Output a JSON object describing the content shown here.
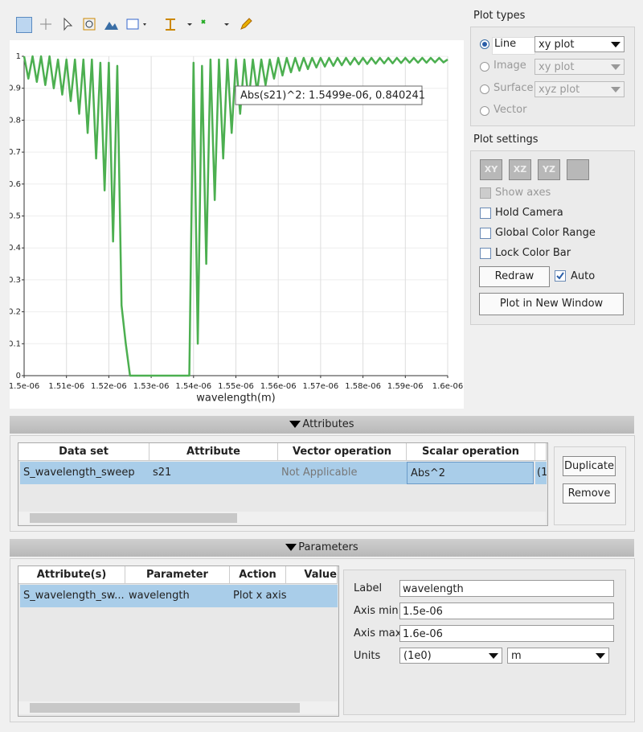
{
  "chart_data": {
    "type": "line",
    "x_label": "wavelength(m)",
    "annotation": "Abs(s21)^2: 1.5499e-06,  0.840241",
    "color": "#4caf50",
    "grid": true,
    "xlim": [
      1.5e-06,
      1.6e-06
    ],
    "ylim": [
      0,
      1
    ],
    "xticks": [
      {
        "value": 1.5e-06,
        "label": "1.5e-06"
      },
      {
        "value": 1.51e-06,
        "label": "1.51e-06"
      },
      {
        "value": 1.52e-06,
        "label": "1.52e-06"
      },
      {
        "value": 1.53e-06,
        "label": "1.53e-06"
      },
      {
        "value": 1.54e-06,
        "label": "1.54e-06"
      },
      {
        "value": 1.55e-06,
        "label": "1.55e-06"
      },
      {
        "value": 1.56e-06,
        "label": "1.56e-06"
      },
      {
        "value": 1.57e-06,
        "label": "1.57e-06"
      },
      {
        "value": 1.58e-06,
        "label": "1.58e-06"
      },
      {
        "value": 1.59e-06,
        "label": "1.59e-06"
      },
      {
        "value": 1.6e-06,
        "label": "1.6e-06"
      }
    ],
    "yticks": [
      0,
      0.1,
      0.2,
      0.3,
      0.4,
      0.5,
      0.6,
      0.7,
      0.8,
      0.9,
      1
    ],
    "x": [
      1.5e-06,
      1.501e-06,
      1.502e-06,
      1.503e-06,
      1.504e-06,
      1.505e-06,
      1.506e-06,
      1.507e-06,
      1.508e-06,
      1.509e-06,
      1.51e-06,
      1.511e-06,
      1.512e-06,
      1.513e-06,
      1.514e-06,
      1.515e-06,
      1.516e-06,
      1.517e-06,
      1.518e-06,
      1.519e-06,
      1.52e-06,
      1.521e-06,
      1.522e-06,
      1.523e-06,
      1.524e-06,
      1.525e-06,
      1.526e-06,
      1.527e-06,
      1.528e-06,
      1.529e-06,
      1.53e-06,
      1.531e-06,
      1.532e-06,
      1.533e-06,
      1.534e-06,
      1.535e-06,
      1.536e-06,
      1.537e-06,
      1.538e-06,
      1.539e-06,
      1.54e-06,
      1.541e-06,
      1.542e-06,
      1.543e-06,
      1.544e-06,
      1.545e-06,
      1.546e-06,
      1.547e-06,
      1.548e-06,
      1.549e-06,
      1.55e-06,
      1.551e-06,
      1.552e-06,
      1.553e-06,
      1.554e-06,
      1.555e-06,
      1.556e-06,
      1.557e-06,
      1.558e-06,
      1.559e-06,
      1.56e-06,
      1.561e-06,
      1.562e-06,
      1.563e-06,
      1.564e-06,
      1.565e-06,
      1.566e-06,
      1.567e-06,
      1.568e-06,
      1.569e-06,
      1.57e-06,
      1.571e-06,
      1.572e-06,
      1.573e-06,
      1.574e-06,
      1.575e-06,
      1.576e-06,
      1.577e-06,
      1.578e-06,
      1.579e-06,
      1.58e-06,
      1.581e-06,
      1.582e-06,
      1.583e-06,
      1.584e-06,
      1.585e-06,
      1.586e-06,
      1.587e-06,
      1.588e-06,
      1.589e-06,
      1.59e-06,
      1.591e-06,
      1.592e-06,
      1.593e-06,
      1.594e-06,
      1.595e-06,
      1.596e-06,
      1.597e-06,
      1.598e-06,
      1.599e-06,
      1.6e-06
    ],
    "values": [
      1.0,
      0.93,
      1.0,
      0.92,
      1.0,
      0.91,
      1.0,
      0.9,
      0.99,
      0.88,
      0.99,
      0.86,
      0.99,
      0.82,
      0.99,
      0.76,
      0.99,
      0.68,
      0.98,
      0.58,
      0.98,
      0.42,
      0.97,
      0.22,
      0.1,
      0,
      0,
      0,
      0,
      0,
      0,
      0,
      0,
      0,
      0,
      0,
      0,
      0,
      0,
      0,
      0.98,
      0.1,
      0.97,
      0.35,
      0.99,
      0.55,
      0.99,
      0.68,
      0.99,
      0.76,
      0.99,
      0.82,
      0.99,
      0.86,
      0.99,
      0.89,
      0.99,
      0.91,
      0.99,
      0.93,
      0.995,
      0.94,
      0.995,
      0.95,
      0.995,
      0.955,
      0.995,
      0.96,
      0.995,
      0.965,
      0.995,
      0.968,
      0.995,
      0.97,
      0.995,
      0.972,
      0.995,
      0.974,
      0.995,
      0.975,
      0.995,
      0.976,
      0.995,
      0.977,
      0.995,
      0.978,
      0.995,
      0.978,
      0.995,
      0.979,
      0.995,
      0.98,
      0.995,
      0.98,
      0.995,
      0.98,
      0.995,
      0.981,
      0.995,
      0.981,
      0.99
    ]
  },
  "plot_types": {
    "title": "Plot types",
    "options": [
      {
        "label": "Line",
        "select": "xy plot"
      },
      {
        "label": "Image",
        "select": "xy plot"
      },
      {
        "label": "Surface",
        "select": "xyz plot"
      },
      {
        "label": "Vector"
      }
    ]
  },
  "plot_settings": {
    "title": "Plot settings",
    "view_buttons": [
      "XY",
      "XZ",
      "YZ"
    ],
    "show_axes": "Show axes",
    "hold_camera": "Hold Camera",
    "global_color_range": "Global Color Range",
    "lock_color_bar": "Lock Color Bar",
    "redraw": "Redraw",
    "auto": "Auto",
    "new_window": "Plot in New Window"
  },
  "attributes": {
    "title": "Attributes",
    "columns": [
      "Data set",
      "Attribute",
      "Vector operation",
      "Scalar operation"
    ],
    "rows": [
      [
        "S_wavelength_sweep",
        "s21",
        "Not Applicable",
        "Abs^2",
        "(1"
      ]
    ],
    "buttons": [
      "Duplicate",
      "Remove"
    ]
  },
  "parameters": {
    "title": "Parameters",
    "columns": [
      "Attribute(s)",
      "Parameter",
      "Action",
      "Value"
    ],
    "rows": [
      [
        "S_wavelength_sw...",
        "wavelength",
        "Plot x axis"
      ]
    ],
    "fields": {
      "label": {
        "name": "Label",
        "value": "wavelength"
      },
      "axis_min": {
        "name": "Axis min",
        "value": "1.5e-06"
      },
      "axis_max": {
        "name": "Axis max",
        "value": "1.6e-06"
      },
      "units": {
        "name": "Units",
        "scale": "(1e0)",
        "unit": "m"
      }
    }
  }
}
